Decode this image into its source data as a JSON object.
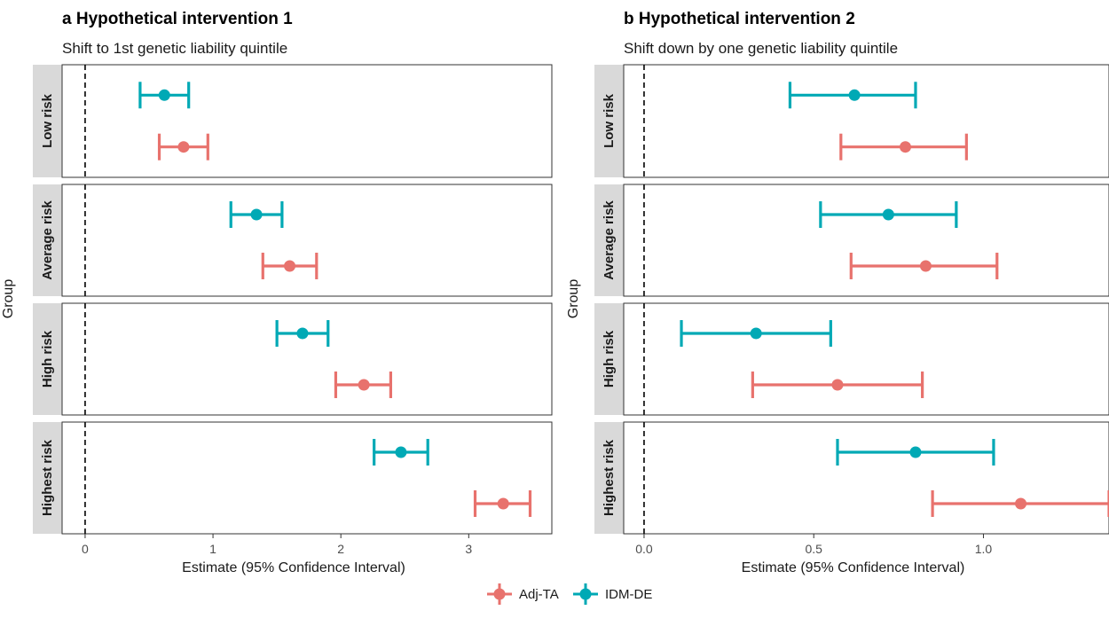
{
  "chart_data": [
    {
      "type": "forest",
      "panel": "a",
      "title": "a Hypothetical intervention 1",
      "subtitle": "Shift to 1st genetic liability quintile",
      "xlabel": "Estimate (95% Confidence Interval)",
      "ylabel": "Group",
      "xlim": [
        -0.18,
        3.65
      ],
      "xticks": [
        0,
        1,
        2,
        3
      ],
      "xtick_labels": [
        "0",
        "1",
        "2",
        "3"
      ],
      "reference_line": 0,
      "groups": [
        "Low risk",
        "Average risk",
        "High risk",
        "Highest risk"
      ],
      "series": [
        {
          "name": "IDM-DE",
          "color": "#00a9b5",
          "estimates": [
            0.62,
            1.34,
            1.7,
            2.47
          ],
          "lower": [
            0.43,
            1.14,
            1.5,
            2.26
          ],
          "upper": [
            0.81,
            1.54,
            1.9,
            2.68
          ]
        },
        {
          "name": "Adj-TA",
          "color": "#e8726d",
          "estimates": [
            0.77,
            1.6,
            2.18,
            3.27
          ],
          "lower": [
            0.58,
            1.39,
            1.96,
            3.05
          ],
          "upper": [
            0.96,
            1.81,
            2.39,
            3.48
          ]
        }
      ]
    },
    {
      "type": "forest",
      "panel": "b",
      "title": "b Hypothetical intervention 2",
      "subtitle": "Shift down by one genetic liability quintile",
      "xlabel": "Estimate (95% Confidence Interval)",
      "ylabel": "Group",
      "xlim": [
        -0.06,
        1.37
      ],
      "xticks": [
        0.0,
        0.5,
        1.0
      ],
      "xtick_labels": [
        "0.0",
        "0.5",
        "1.0"
      ],
      "reference_line": 0,
      "groups": [
        "Low risk",
        "Average risk",
        "High risk",
        "Highest risk"
      ],
      "series": [
        {
          "name": "IDM-DE",
          "color": "#00a9b5",
          "estimates": [
            0.62,
            0.72,
            0.33,
            0.8
          ],
          "lower": [
            0.43,
            0.52,
            0.11,
            0.57
          ],
          "upper": [
            0.8,
            0.92,
            0.55,
            1.03
          ]
        },
        {
          "name": "Adj-TA",
          "color": "#e8726d",
          "estimates": [
            0.77,
            0.83,
            0.57,
            1.11
          ],
          "lower": [
            0.58,
            0.61,
            0.32,
            0.85
          ],
          "upper": [
            0.95,
            1.04,
            0.82,
            1.37
          ]
        }
      ]
    }
  ],
  "legend": {
    "position": "bottom",
    "items": [
      {
        "name": "Adj-TA",
        "color": "#e8726d"
      },
      {
        "name": "IDM-DE",
        "color": "#00a9b5"
      }
    ]
  }
}
